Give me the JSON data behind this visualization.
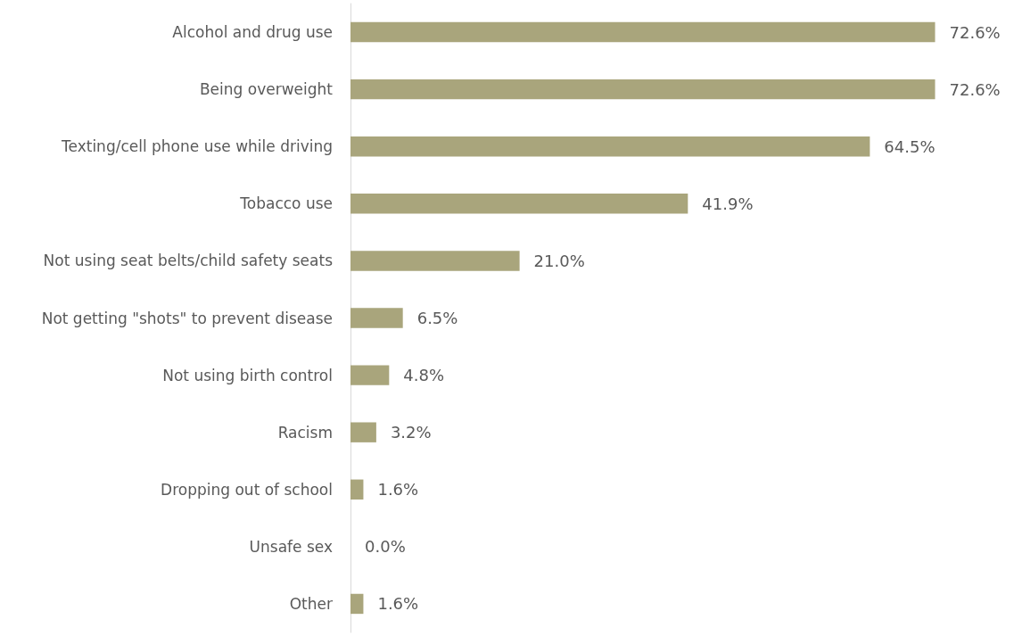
{
  "chart_data": {
    "type": "bar",
    "orientation": "horizontal",
    "categories": [
      "Alcohol and drug use",
      "Being overweight",
      "Texting/cell phone use while driving",
      "Tobacco use",
      "Not using seat belts/child safety seats",
      "Not getting \"shots\" to prevent disease",
      "Not using birth control",
      "Racism",
      "Dropping out of school",
      "Unsafe sex",
      "Other"
    ],
    "values": [
      72.6,
      72.6,
      64.5,
      41.9,
      21.0,
      6.5,
      4.8,
      3.2,
      1.6,
      0.0,
      1.6
    ],
    "value_labels": [
      "72.6%",
      "72.6%",
      "64.5%",
      "41.9%",
      "21.0%",
      "6.5%",
      "4.8%",
      "3.2%",
      "1.6%",
      "0.0%",
      "1.6%"
    ],
    "color": "#a9a57c"
  }
}
